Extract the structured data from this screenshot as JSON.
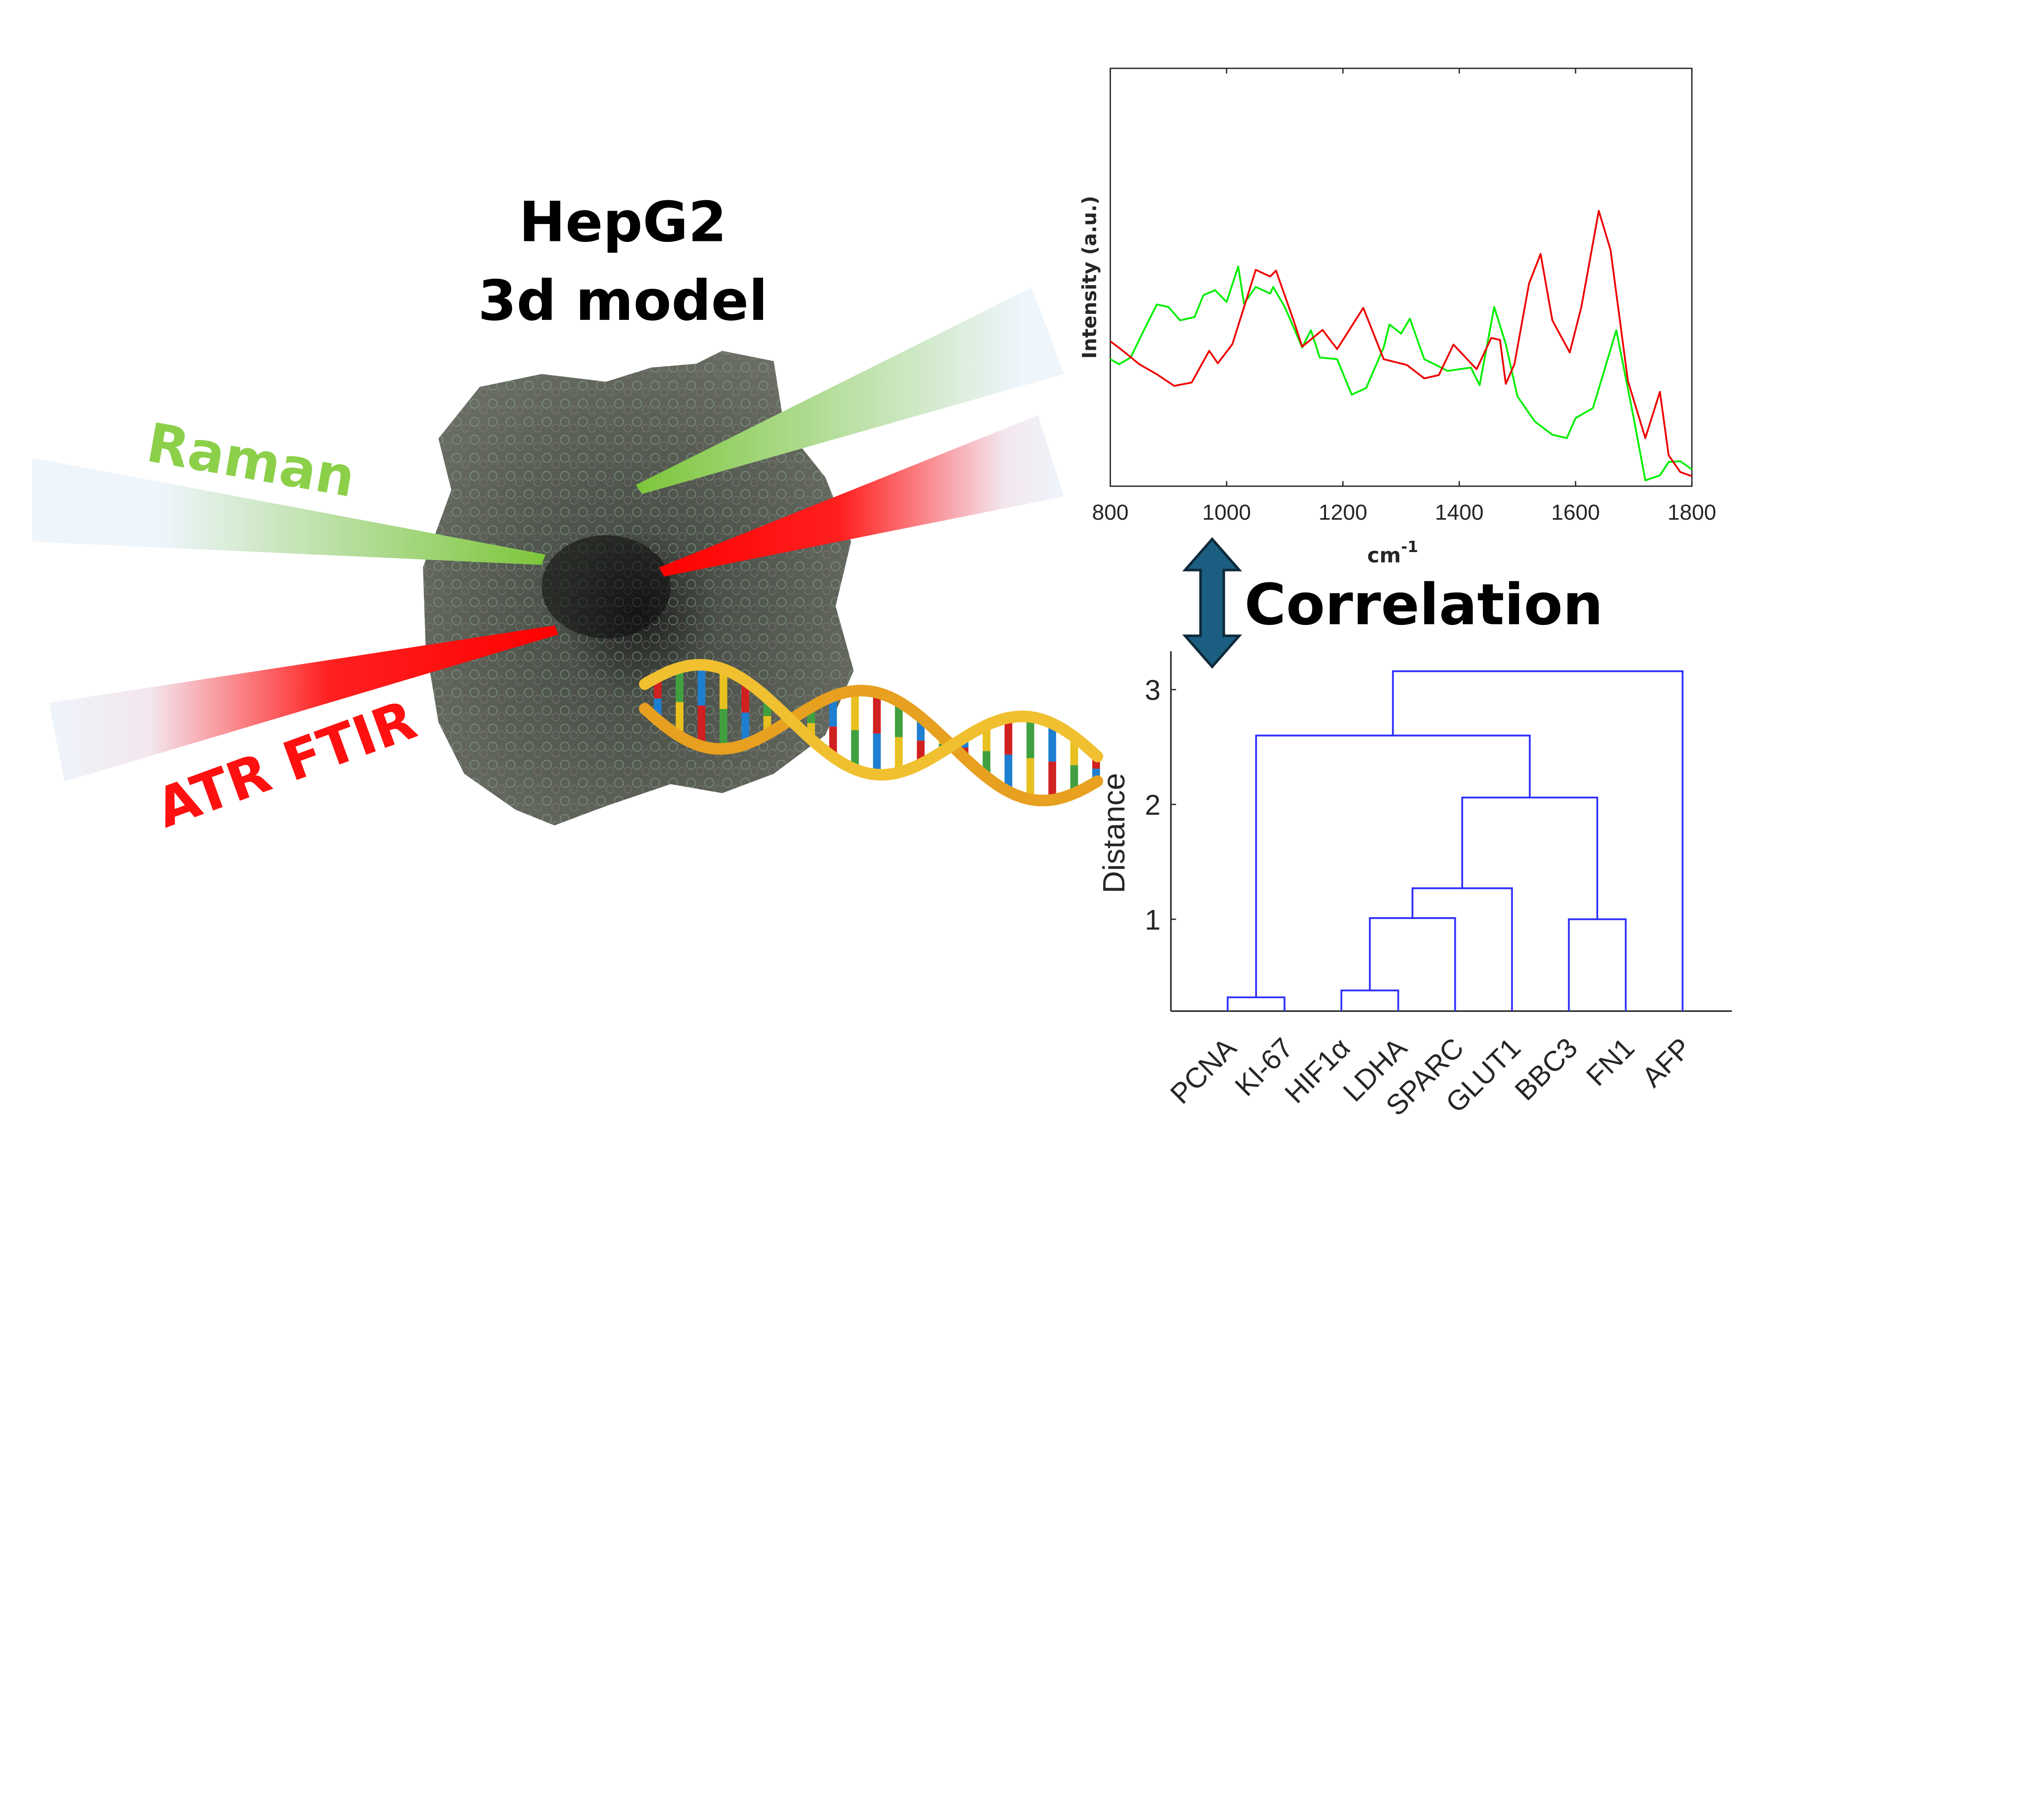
{
  "title": {
    "line1": "HepG2",
    "line2": "3d model"
  },
  "labels": {
    "raman": "Raman",
    "atr_ftir": "ATR FTIR",
    "correlation": "Correlation"
  },
  "colors": {
    "raman": "#8CD04A",
    "ftir": "#FF1010",
    "arrow": "#1B5E82",
    "dendrogram": "#3030FF",
    "spectrum_green": "#00EE00",
    "spectrum_red": "#EE0000"
  },
  "icons": {
    "correlation_arrow": "double-arrow-vertical",
    "spheroid": "cell-spheroid",
    "dna": "dna-helix"
  },
  "chart_data": [
    {
      "type": "line",
      "xlabel": "cm",
      "xlabel_sup": "-1",
      "ylabel": "Intensity (a.u.)",
      "xlim": [
        800,
        1800
      ],
      "ylim": [
        0,
        100
      ],
      "xticks": [
        800,
        1000,
        1200,
        1400,
        1600,
        1800
      ],
      "yticks": [],
      "grid": false,
      "series": [
        {
          "color": "#00EE00",
          "x": [
            800,
            815,
            835,
            860,
            880,
            900,
            920,
            945,
            960,
            980,
            1000,
            1020,
            1030,
            1050,
            1075,
            1080,
            1100,
            1130,
            1145,
            1160,
            1190,
            1215,
            1240,
            1270,
            1280,
            1300,
            1315,
            1340,
            1380,
            1420,
            1435,
            1460,
            1480,
            1500,
            1530,
            1560,
            1585,
            1600,
            1630,
            1670,
            1700,
            1720,
            1745,
            1760,
            1780,
            1800
          ],
          "y": [
            30.4,
            29.2,
            30.8,
            38,
            43.5,
            42.9,
            39.7,
            40.5,
            45.7,
            46.9,
            44.1,
            52.6,
            43.7,
            47.7,
            46.1,
            47.7,
            42.9,
            33.2,
            37.3,
            30.8,
            30.4,
            21.9,
            23.5,
            33.2,
            38.7,
            36.5,
            40.1,
            30.4,
            27.6,
            28.4,
            24.2,
            42.9,
            34,
            21.5,
            15.5,
            12.3,
            11.5,
            16.3,
            18.7,
            37.3,
            16.3,
            1.4,
            2.6,
            5.8,
            6,
            4
          ]
        },
        {
          "color": "#EE0000",
          "x": [
            800,
            820,
            850,
            880,
            910,
            940,
            970,
            985,
            1010,
            1050,
            1075,
            1085,
            1115,
            1130,
            1165,
            1190,
            1235,
            1270,
            1310,
            1340,
            1365,
            1390,
            1430,
            1455,
            1470,
            1480,
            1495,
            1520,
            1540,
            1560,
            1590,
            1610,
            1640,
            1660,
            1690,
            1720,
            1745,
            1760,
            1780,
            1800
          ],
          "y": [
            34.7,
            32.6,
            29.2,
            26.8,
            24,
            24.8,
            32.4,
            29.4,
            34,
            51.8,
            50.2,
            51.6,
            39.7,
            33.4,
            37.4,
            32.8,
            42.7,
            30.4,
            29,
            25.8,
            26.6,
            33.9,
            28,
            35.5,
            35,
            24.5,
            29.2,
            48.5,
            55.6,
            39.7,
            32,
            42.9,
            65.9,
            56.6,
            25.2,
            11.5,
            22.6,
            7.4,
            3.4,
            2.4
          ]
        }
      ]
    },
    {
      "type": "dendrogram",
      "ylabel": "Distance",
      "ylim": [
        0.2,
        3.3
      ],
      "yticks": [
        1,
        2,
        3
      ],
      "leaves": [
        "PCNA",
        "KI-67",
        "HIF1α",
        "LDHA",
        "SPARC",
        "GLUT1",
        "BBC3",
        "FN1",
        "AFP"
      ],
      "color": "#3030FF",
      "merges": [
        {
          "a": "PCNA",
          "b": "KI-67",
          "height": 0.32,
          "id": "c1"
        },
        {
          "a": "HIF1α",
          "b": "LDHA",
          "height": 0.38,
          "id": "c2"
        },
        {
          "a": "c2",
          "b": "SPARC",
          "height": 1.01,
          "id": "c3"
        },
        {
          "a": "BBC3",
          "b": "FN1",
          "height": 1.0,
          "id": "c4"
        },
        {
          "a": "c3",
          "b": "GLUT1",
          "height": 1.27,
          "id": "c5"
        },
        {
          "a": "c5",
          "b": "c4",
          "height": 2.06,
          "id": "c6"
        },
        {
          "a": "c1",
          "b": "c6",
          "height": 2.6,
          "id": "c7"
        },
        {
          "a": "c7",
          "b": "AFP",
          "height": 3.16,
          "id": "c8"
        }
      ]
    }
  ]
}
